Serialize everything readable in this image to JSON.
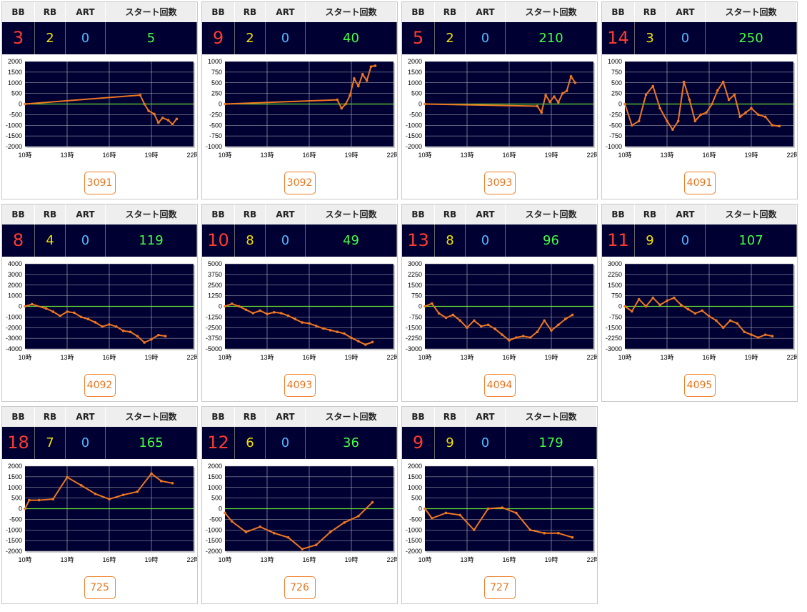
{
  "headers": {
    "bb": "BB",
    "rb": "RB",
    "art": "ART",
    "start": "スタート回数"
  },
  "x_ticks": [
    "10時",
    "13時",
    "16時",
    "19時",
    "22時"
  ],
  "colors": {
    "bb": "#ff3b30",
    "rb": "#f3e100",
    "art": "#55b7ff",
    "start": "#44ff44",
    "line": "#ee7722",
    "zero": "#66dd33",
    "plot_bg": "#000033"
  },
  "cards": [
    {
      "bb": "3",
      "rb": "2",
      "art": "0",
      "start": "5",
      "machine": "3091",
      "chart_data": {
        "type": "line",
        "y_ticks": [
          "2000",
          "1500",
          "1000",
          "500",
          "0",
          "-500",
          "-1000",
          "-1500",
          "-2000"
        ],
        "ylim": [
          -2000,
          2000
        ],
        "x": [
          10,
          18.2,
          18.5,
          18.8,
          19.2,
          19.5,
          19.8,
          20.2,
          20.5,
          20.8
        ],
        "y": [
          0,
          420,
          0,
          -320,
          -470,
          -880,
          -650,
          -760,
          -950,
          -700
        ]
      }
    },
    {
      "bb": "9",
      "rb": "2",
      "art": "0",
      "start": "40",
      "machine": "3092",
      "chart_data": {
        "type": "line",
        "y_ticks": [
          "1000",
          "750",
          "500",
          "250",
          "0",
          "-250",
          "-500",
          "-750",
          "-1000"
        ],
        "ylim": [
          -1000,
          1000
        ],
        "x": [
          10,
          18,
          18.3,
          18.6,
          18.9,
          19.2,
          19.5,
          19.8,
          20.1,
          20.4,
          20.7
        ],
        "y": [
          0,
          100,
          -100,
          0,
          200,
          600,
          420,
          700,
          550,
          880,
          900
        ]
      }
    },
    {
      "bb": "5",
      "rb": "2",
      "art": "0",
      "start": "210",
      "machine": "3093",
      "chart_data": {
        "type": "line",
        "y_ticks": [
          "2000",
          "1500",
          "1000",
          "500",
          "0",
          "-500",
          "-1000",
          "-1500",
          "-2000"
        ],
        "ylim": [
          -2000,
          2000
        ],
        "x": [
          10,
          18,
          18.3,
          18.6,
          18.9,
          19.2,
          19.5,
          19.8,
          20.1,
          20.4,
          20.7
        ],
        "y": [
          0,
          -100,
          -400,
          420,
          100,
          350,
          80,
          500,
          620,
          1300,
          1000
        ]
      }
    },
    {
      "bb": "14",
      "rb": "3",
      "art": "0",
      "start": "250",
      "machine": "4091",
      "chart_data": {
        "type": "line",
        "y_ticks": [
          "1000",
          "750",
          "500",
          "250",
          "0",
          "-250",
          "-500",
          "-750",
          "-1000"
        ],
        "ylim": [
          -1000,
          1000
        ],
        "x": [
          10,
          10.5,
          11,
          11.5,
          12,
          12.5,
          13,
          13.4,
          13.8,
          14.2,
          14.6,
          15,
          15.4,
          15.8,
          16.2,
          16.6,
          17,
          17.4,
          17.8,
          18.2,
          18.6,
          19,
          19.5,
          20,
          20.5,
          21
        ],
        "y": [
          0,
          -500,
          -400,
          220,
          420,
          -100,
          -400,
          -600,
          -400,
          520,
          100,
          -400,
          -250,
          -200,
          0,
          320,
          520,
          100,
          220,
          -300,
          -200,
          -100,
          -250,
          -300,
          -500,
          -520
        ]
      }
    },
    {
      "bb": "8",
      "rb": "4",
      "art": "0",
      "start": "119",
      "machine": "4092",
      "chart_data": {
        "type": "line",
        "y_ticks": [
          "4000",
          "3000",
          "2000",
          "1000",
          "0",
          "-1000",
          "-2000",
          "-3000",
          "-4000"
        ],
        "ylim": [
          -4000,
          4000
        ],
        "x": [
          10,
          10.5,
          11.5,
          12,
          12.5,
          13,
          13.5,
          14,
          14.5,
          15,
          15.5,
          16,
          16.5,
          17,
          17.5,
          18,
          18.5,
          19,
          19.5,
          20
        ],
        "y": [
          0,
          200,
          -200,
          -500,
          -900,
          -500,
          -600,
          -1000,
          -1200,
          -1500,
          -1900,
          -1700,
          -1900,
          -2300,
          -2400,
          -2800,
          -3400,
          -3100,
          -2700,
          -2800
        ]
      }
    },
    {
      "bb": "10",
      "rb": "8",
      "art": "0",
      "start": "49",
      "machine": "4093",
      "chart_data": {
        "type": "line",
        "y_ticks": [
          "5000",
          "3750",
          "2500",
          "1250",
          "0",
          "-1250",
          "-2500",
          "-3750",
          "-5000"
        ],
        "ylim": [
          -5000,
          5000
        ],
        "x": [
          10,
          10.5,
          11,
          11.5,
          12,
          12.5,
          13,
          13.5,
          14,
          14.5,
          15,
          15.5,
          16,
          16.5,
          17,
          17.5,
          18,
          18.5,
          19,
          19.5,
          20,
          20.5
        ],
        "y": [
          0,
          300,
          0,
          -400,
          -800,
          -500,
          -900,
          -700,
          -800,
          -1100,
          -1500,
          -1900,
          -2000,
          -2300,
          -2600,
          -2800,
          -3000,
          -3200,
          -3700,
          -4100,
          -4500,
          -4200
        ]
      }
    },
    {
      "bb": "13",
      "rb": "8",
      "art": "0",
      "start": "96",
      "machine": "4094",
      "chart_data": {
        "type": "line",
        "y_ticks": [
          "3000",
          "2250",
          "1500",
          "750",
          "0",
          "-750",
          "-1500",
          "-2250",
          "-3000"
        ],
        "ylim": [
          -3000,
          3000
        ],
        "x": [
          10,
          10.5,
          11,
          11.5,
          12,
          12.5,
          13,
          13.5,
          14,
          14.5,
          15,
          15.5,
          16,
          16.5,
          17,
          17.5,
          18,
          18.5,
          19,
          19.5,
          20,
          20.5
        ],
        "y": [
          0,
          200,
          -500,
          -800,
          -600,
          -1000,
          -1500,
          -1000,
          -1400,
          -1300,
          -1600,
          -2000,
          -2400,
          -2200,
          -2100,
          -2200,
          -1800,
          -1000,
          -1700,
          -1300,
          -900,
          -600
        ]
      }
    },
    {
      "bb": "11",
      "rb": "9",
      "art": "0",
      "start": "107",
      "machine": "4095",
      "chart_data": {
        "type": "line",
        "y_ticks": [
          "3000",
          "2250",
          "1500",
          "750",
          "0",
          "-750",
          "-1500",
          "-2250",
          "-3000"
        ],
        "ylim": [
          -3000,
          3000
        ],
        "x": [
          10,
          10.5,
          11,
          11.5,
          12,
          12.5,
          13,
          13.5,
          14,
          14.5,
          15,
          15.5,
          16,
          16.5,
          17,
          17.5,
          18,
          18.5,
          19,
          19.5,
          20,
          20.5
        ],
        "y": [
          0,
          -350,
          500,
          0,
          600,
          100,
          400,
          600,
          100,
          -200,
          -500,
          -300,
          -700,
          -1000,
          -1500,
          -1000,
          -1200,
          -1800,
          -2000,
          -2200,
          -2000,
          -2100
        ]
      }
    },
    {
      "bb": "18",
      "rb": "7",
      "art": "0",
      "start": "165",
      "machine": "725",
      "chart_data": {
        "type": "line",
        "y_ticks": [
          "2000",
          "1500",
          "1000",
          "500",
          "0",
          "-500",
          "-1000",
          "-1500",
          "-2000"
        ],
        "ylim": [
          -2000,
          2000
        ],
        "x": [
          10,
          10.3,
          11,
          12,
          13,
          14,
          15,
          16,
          17,
          18,
          19,
          19.7,
          20.5
        ],
        "y": [
          0,
          400,
          400,
          450,
          1480,
          1100,
          700,
          450,
          650,
          800,
          1650,
          1300,
          1200
        ]
      }
    },
    {
      "bb": "12",
      "rb": "6",
      "art": "0",
      "start": "36",
      "machine": "726",
      "chart_data": {
        "type": "line",
        "y_ticks": [
          "2000",
          "1500",
          "1000",
          "500",
          "0",
          "-500",
          "-1000",
          "-1500",
          "-2000"
        ],
        "ylim": [
          -2000,
          2000
        ],
        "x": [
          10,
          10.5,
          11.5,
          12.5,
          13.5,
          14.5,
          15.5,
          16.5,
          17.5,
          18.5,
          19.5,
          20.5
        ],
        "y": [
          -200,
          -600,
          -1100,
          -850,
          -1150,
          -1350,
          -1900,
          -1700,
          -1100,
          -650,
          -350,
          300
        ]
      }
    },
    {
      "bb": "9",
      "rb": "9",
      "art": "0",
      "start": "179",
      "machine": "727",
      "chart_data": {
        "type": "line",
        "y_ticks": [
          "2000",
          "1500",
          "1000",
          "500",
          "0",
          "-500",
          "-1000",
          "-1500",
          "-2000"
        ],
        "ylim": [
          -2000,
          2000
        ],
        "x": [
          10,
          10.5,
          11.5,
          12.5,
          13.5,
          14.5,
          15.5,
          16.5,
          17.5,
          18.5,
          19.5,
          20.5
        ],
        "y": [
          0,
          -450,
          -200,
          -300,
          -1000,
          0,
          50,
          -200,
          -1000,
          -1150,
          -1150,
          -1350
        ]
      }
    }
  ]
}
